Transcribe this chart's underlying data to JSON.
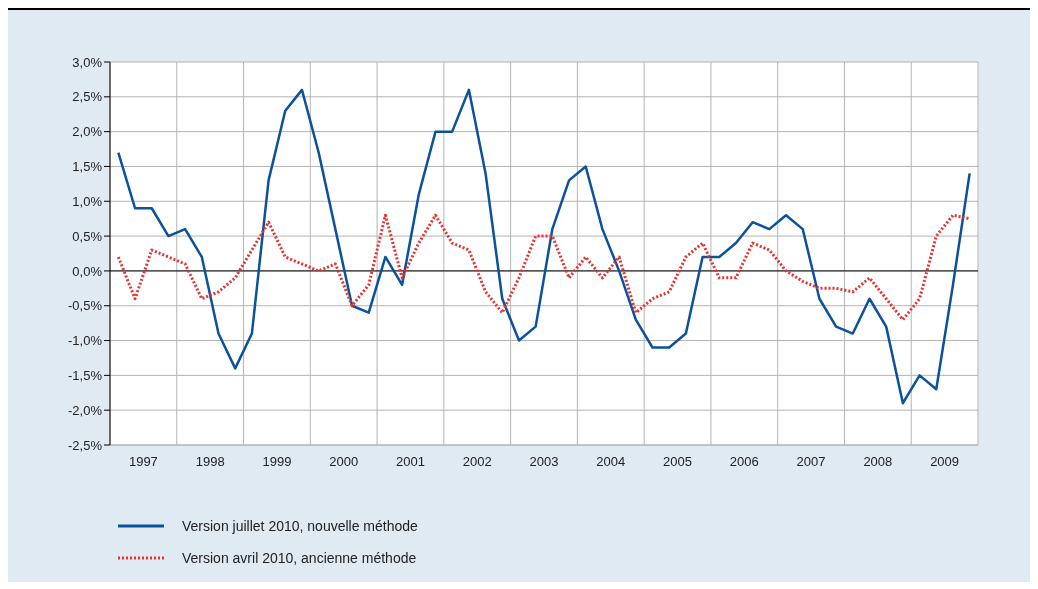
{
  "chart_data": {
    "type": "line",
    "x": [
      1997.125,
      1997.375,
      1997.625,
      1997.875,
      1998.125,
      1998.375,
      1998.625,
      1998.875,
      1999.125,
      1999.375,
      1999.625,
      1999.875,
      2000.125,
      2000.375,
      2000.625,
      2000.875,
      2001.125,
      2001.375,
      2001.625,
      2001.875,
      2002.125,
      2002.375,
      2002.625,
      2002.875,
      2003.125,
      2003.375,
      2003.625,
      2003.875,
      2004.125,
      2004.375,
      2004.625,
      2004.875,
      2005.125,
      2005.375,
      2005.625,
      2005.875,
      2006.125,
      2006.375,
      2006.625,
      2006.875,
      2007.125,
      2007.375,
      2007.625,
      2007.875,
      2008.125,
      2008.375,
      2008.625,
      2008.875,
      2009.125,
      2009.375,
      2009.625,
      2009.875
    ],
    "series": [
      {
        "name": "Version juillet 2010, nouvelle méthode",
        "color": "#0b519c",
        "line_style": "solid",
        "values": [
          1.7,
          0.9,
          0.9,
          0.5,
          0.6,
          0.2,
          -0.9,
          -1.4,
          -0.9,
          1.3,
          2.3,
          2.6,
          1.7,
          0.6,
          -0.5,
          -0.6,
          0.2,
          -0.2,
          1.1,
          2.0,
          2.0,
          2.6,
          1.4,
          -0.4,
          -1.0,
          -0.8,
          0.6,
          1.3,
          1.5,
          0.6,
          0.0,
          -0.7,
          -1.1,
          -1.1,
          -0.9,
          0.2,
          0.2,
          0.4,
          0.7,
          0.6,
          0.8,
          0.6,
          -0.4,
          -0.8,
          -0.9,
          -0.4,
          -0.8,
          -1.9,
          -1.5,
          -1.7,
          -0.2,
          1.4
        ]
      },
      {
        "name": "Version avril 2010, ancienne méthode",
        "color": "#e8302c",
        "line_style": "dotted",
        "values": [
          0.2,
          -0.4,
          0.3,
          0.2,
          0.1,
          -0.4,
          -0.3,
          -0.1,
          0.3,
          0.7,
          0.2,
          0.1,
          0.0,
          0.1,
          -0.5,
          -0.2,
          0.8,
          -0.1,
          0.4,
          0.8,
          0.4,
          0.3,
          -0.3,
          -0.6,
          -0.1,
          0.5,
          0.5,
          -0.1,
          0.2,
          -0.1,
          0.2,
          -0.6,
          -0.4,
          -0.3,
          0.2,
          0.4,
          -0.1,
          -0.1,
          0.4,
          0.3,
          0.0,
          -0.15,
          -0.25,
          -0.25,
          -0.3,
          -0.1,
          -0.4,
          -0.7,
          -0.4,
          0.5,
          0.8,
          0.75
        ]
      }
    ],
    "xlim": [
      1997,
      2010
    ],
    "xticks": [
      {
        "value": 1997,
        "label": null
      },
      {
        "value": 1997.5,
        "label": "1997"
      },
      {
        "value": 1998,
        "label": null
      },
      {
        "value": 1998.5,
        "label": "1998"
      },
      {
        "value": 1999,
        "label": null
      },
      {
        "value": 1999.5,
        "label": "1999"
      },
      {
        "value": 2000,
        "label": null
      },
      {
        "value": 2000.5,
        "label": "2000"
      },
      {
        "value": 2001,
        "label": null
      },
      {
        "value": 2001.5,
        "label": "2001"
      },
      {
        "value": 2002,
        "label": null
      },
      {
        "value": 2002.5,
        "label": "2002"
      },
      {
        "value": 2003,
        "label": null
      },
      {
        "value": 2003.5,
        "label": "2003"
      },
      {
        "value": 2004,
        "label": null
      },
      {
        "value": 2004.5,
        "label": "2004"
      },
      {
        "value": 2005,
        "label": null
      },
      {
        "value": 2005.5,
        "label": "2005"
      },
      {
        "value": 2006,
        "label": null
      },
      {
        "value": 2006.5,
        "label": "2006"
      },
      {
        "value": 2007,
        "label": null
      },
      {
        "value": 2007.5,
        "label": "2007"
      },
      {
        "value": 2008,
        "label": null
      },
      {
        "value": 2008.5,
        "label": "2008"
      },
      {
        "value": 2009,
        "label": null
      },
      {
        "value": 2009.5,
        "label": "2009"
      },
      {
        "value": 2010,
        "label": null
      }
    ],
    "ylim": [
      -2.5,
      3.0
    ],
    "yticks": [
      {
        "value": -2.5,
        "label": "-2,5%"
      },
      {
        "value": -2.0,
        "label": "-2,0%"
      },
      {
        "value": -1.5,
        "label": "-1,5%"
      },
      {
        "value": -1.0,
        "label": "-1,0%"
      },
      {
        "value": -0.5,
        "label": "-0,5%"
      },
      {
        "value": 0,
        "label": "0,0%"
      },
      {
        "value": 0.5,
        "label": "0,5%"
      },
      {
        "value": 1.0,
        "label": "1,0%"
      },
      {
        "value": 1.5,
        "label": "1,5%"
      },
      {
        "value": 2.0,
        "label": "2,0%"
      },
      {
        "value": 2.5,
        "label": "2,5%"
      },
      {
        "value": 3.0,
        "label": "3,0%"
      }
    ],
    "ref_lines": [
      {
        "axis": "y",
        "value": 0,
        "color": "#000000"
      }
    ],
    "grid": true,
    "legend": "bottom left",
    "marker": "none"
  }
}
